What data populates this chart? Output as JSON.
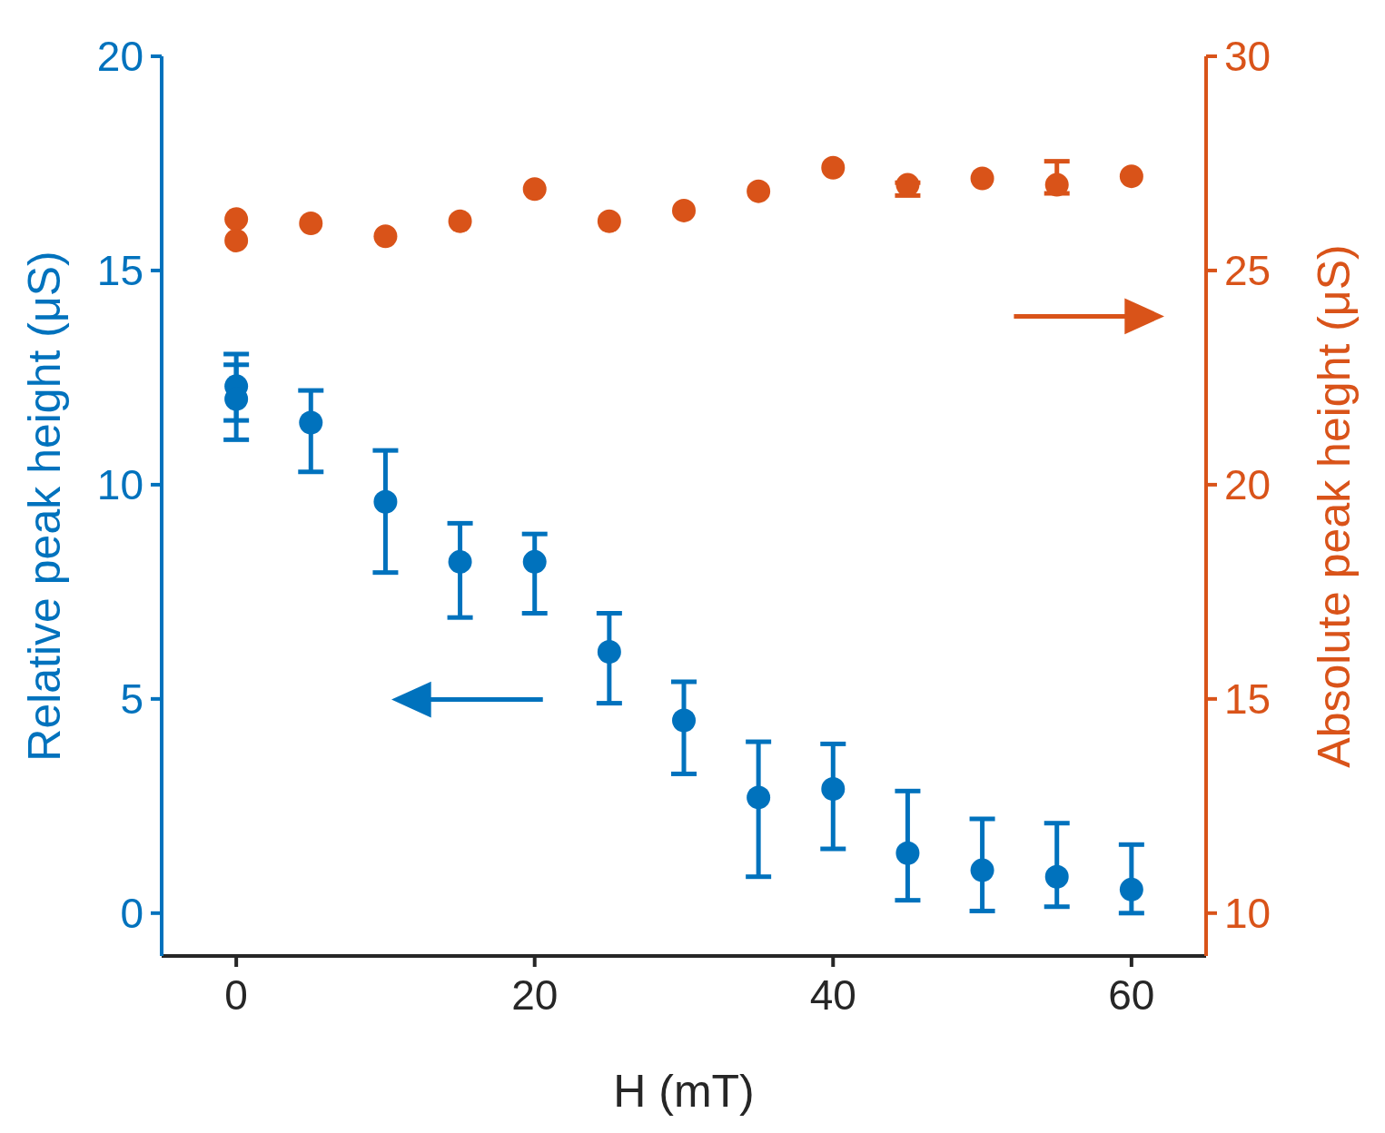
{
  "chart_data": {
    "type": "scatter",
    "xlabel": "H (mT)",
    "ylabel": "Relative peak height  (μS)",
    "y2label": "Absolute peak height  (μS)",
    "xlim": [
      -5,
      65
    ],
    "xticks": [
      0,
      20,
      40,
      60
    ],
    "ylim": [
      -1,
      20
    ],
    "yticks": [
      0,
      5,
      10,
      15,
      20
    ],
    "y2lim": [
      9,
      30
    ],
    "y2ticks": [
      10,
      15,
      20,
      25,
      30
    ],
    "marker": "circle",
    "series": [
      {
        "color": "#0072bd",
        "x": [
          0,
          0,
          5,
          10,
          15,
          20,
          25,
          30,
          35,
          40,
          45,
          50,
          55,
          60
        ],
        "values": [
          12.3,
          12.0,
          11.45,
          9.6,
          8.2,
          8.2,
          6.1,
          4.5,
          2.7,
          2.9,
          1.4,
          1.0,
          0.85,
          0.55
        ],
        "errors": [
          [
            11.5,
            13.05
          ],
          [
            11.05,
            12.8
          ],
          [
            10.3,
            12.2
          ],
          [
            7.95,
            10.8
          ],
          [
            6.9,
            9.1
          ],
          [
            7.0,
            8.85
          ],
          [
            4.9,
            7.0
          ],
          [
            3.25,
            5.4
          ],
          [
            0.85,
            4.0
          ],
          [
            1.5,
            3.95
          ],
          [
            0.3,
            2.85
          ],
          [
            0.05,
            2.2
          ],
          [
            0.15,
            2.1
          ],
          [
            0.0,
            1.6
          ]
        ]
      },
      {
        "color": "#d95319",
        "axis": "y2",
        "x": [
          0,
          0,
          5,
          10,
          15,
          20,
          25,
          30,
          35,
          40,
          45,
          50,
          55,
          60
        ],
        "values": [
          26.2,
          25.7,
          26.1,
          25.8,
          26.15,
          26.9,
          26.15,
          26.4,
          26.85,
          27.4,
          27.0,
          27.15,
          27.0,
          27.2
        ],
        "errors": [
          null,
          null,
          null,
          null,
          null,
          null,
          null,
          null,
          null,
          null,
          [
            26.75,
            27.05
          ],
          null,
          [
            26.8,
            27.55
          ],
          null
        ]
      }
    ]
  }
}
